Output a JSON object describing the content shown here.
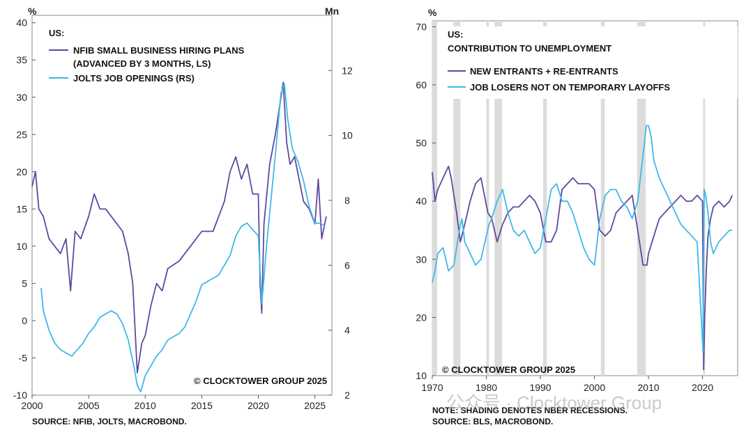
{
  "chart_data": [
    {
      "type": "line",
      "panel_title": "US:",
      "left_unit": "%",
      "right_unit": "Mn",
      "x_ticks": [
        "2000",
        "2005",
        "2010",
        "2015",
        "2020",
        "2025"
      ],
      "xlim": [
        2000,
        2026.5
      ],
      "ylim_left": [
        -10,
        41
      ],
      "ylim_right": [
        2,
        13.7
      ],
      "left_ticks": [
        40,
        35,
        30,
        25,
        20,
        15,
        10,
        5,
        0,
        -5,
        -10
      ],
      "right_ticks": [
        12,
        10,
        8,
        6,
        4,
        2
      ],
      "copyright": "© CLOCKTOWER GROUP 2025",
      "source": "SOURCE: NFIB, JOLTS, MACROBOND.",
      "series": [
        {
          "name": "NFIB SMALL BUSINESS HIRING PLANS",
          "name_line2": "(ADVANCED BY 3 MONTHS, LS)",
          "axis": "left",
          "color": "#5b4a9e",
          "x": [
            2000,
            2000.3,
            2000.6,
            2001,
            2001.5,
            2002,
            2002.5,
            2003,
            2003.4,
            2003.8,
            2004.3,
            2005,
            2005.5,
            2006,
            2006.5,
            2007,
            2007.5,
            2008,
            2008.5,
            2008.9,
            2009.3,
            2009.7,
            2010,
            2010.5,
            2011,
            2011.5,
            2012,
            2013,
            2014,
            2015,
            2016,
            2017,
            2017.5,
            2018,
            2018.5,
            2019,
            2019.5,
            2020,
            2020.15,
            2020.3,
            2020.5,
            2021,
            2021.5,
            2021.9,
            2022.2,
            2022.5,
            2022.8,
            2023.2,
            2023.6,
            2024,
            2024.5,
            2025,
            2025.3,
            2025.6,
            2026
          ],
          "y": [
            18,
            20,
            15,
            14,
            11,
            10,
            9,
            11,
            4,
            12,
            11,
            14,
            17,
            15,
            15,
            14,
            13,
            12,
            9,
            5,
            -7,
            -3,
            -2,
            2,
            5,
            4,
            7,
            8,
            10,
            12,
            12,
            16,
            20,
            22,
            19,
            21,
            17,
            17,
            5,
            1,
            13,
            21,
            25,
            29,
            32,
            24,
            21,
            22,
            19,
            16,
            15,
            13,
            19,
            11,
            14
          ]
        },
        {
          "name": "JOLTS JOB OPENINGS (RS)",
          "axis": "right",
          "color": "#3fb8e8",
          "x": [
            2000.8,
            2001,
            2001.5,
            2002,
            2002.5,
            2003,
            2003.5,
            2004,
            2004.5,
            2005,
            2005.5,
            2006,
            2006.5,
            2007,
            2007.5,
            2008,
            2008.5,
            2009,
            2009.3,
            2009.6,
            2010,
            2010.5,
            2011,
            2011.5,
            2012,
            2012.5,
            2013,
            2013.5,
            2014,
            2014.5,
            2015,
            2015.5,
            2016,
            2016.5,
            2017,
            2017.5,
            2018,
            2018.5,
            2019,
            2019.5,
            2020,
            2020.3,
            2020.45,
            2020.7,
            2021,
            2021.5,
            2022,
            2022.3,
            2022.6,
            2023,
            2023.5,
            2024,
            2024.5,
            2025,
            2025.5,
            2025.9
          ],
          "y": [
            5.3,
            4.6,
            4.0,
            3.6,
            3.4,
            3.3,
            3.2,
            3.4,
            3.6,
            3.9,
            4.1,
            4.4,
            4.5,
            4.6,
            4.5,
            4.2,
            3.7,
            2.9,
            2.3,
            2.1,
            2.6,
            2.9,
            3.2,
            3.4,
            3.7,
            3.8,
            3.9,
            4.1,
            4.5,
            4.9,
            5.4,
            5.5,
            5.6,
            5.7,
            6.0,
            6.3,
            6.9,
            7.2,
            7.3,
            7.1,
            6.9,
            4.8,
            5.4,
            6.5,
            7.6,
            9.4,
            11.3,
            11.6,
            10.5,
            9.6,
            9.2,
            8.6,
            7.8,
            7.3,
            7.3,
            7.2
          ]
        }
      ]
    },
    {
      "type": "line",
      "panel_title": "US:",
      "panel_subtitle": "CONTRIBUTION TO UNEMPLOYMENT",
      "left_unit": "%",
      "x_ticks": [
        "1970",
        "1980",
        "1990",
        "2000",
        "2010",
        "2020"
      ],
      "xlim": [
        1970,
        2026.5
      ],
      "ylim": [
        10,
        71
      ],
      "y_ticks": [
        70,
        60,
        50,
        40,
        30,
        20,
        10
      ],
      "recessions": [
        [
          1969.9,
          1970.9
        ],
        [
          1973.9,
          1975.2
        ],
        [
          1980.0,
          1980.5
        ],
        [
          1981.5,
          1982.9
        ],
        [
          1990.5,
          1991.2
        ],
        [
          2001.2,
          2001.9
        ],
        [
          2007.9,
          2009.5
        ],
        [
          2020.1,
          2020.4
        ]
      ],
      "copyright": "© CLOCKTOWER GROUP 2025",
      "note": "NOTE: SHADING DENOTES NBER RECESSIONS.",
      "source": "SOURCE: BLS, MACROBOND.",
      "watermark": "公众号 · Clocktower Group",
      "series": [
        {
          "name": "NEW ENTRANTS + RE-ENTRANTS",
          "color": "#5b4a9e",
          "x": [
            1970,
            1970.5,
            1971,
            1972,
            1973,
            1973.5,
            1974.5,
            1975.2,
            1976,
            1977,
            1978,
            1979,
            1980.3,
            1981,
            1982,
            1983,
            1984,
            1985,
            1986,
            1987,
            1988,
            1989,
            1990,
            1991,
            1992,
            1993,
            1994,
            1995,
            1996,
            1997,
            1998,
            1999,
            2000,
            2001,
            2002,
            2003,
            2004,
            2005,
            2006,
            2007,
            2008,
            2009,
            2009.7,
            2010,
            2011,
            2012,
            2013,
            2014,
            2015,
            2016,
            2017,
            2018,
            2019,
            2020.0,
            2020.2,
            2020.4,
            2020.7,
            2021,
            2021.5,
            2022,
            2023,
            2024,
            2025,
            2025.5
          ],
          "y": [
            45,
            40,
            42,
            44,
            46,
            44,
            38,
            33,
            36,
            40,
            43,
            44,
            38,
            37,
            33,
            36,
            38,
            39,
            39,
            40,
            41,
            40,
            38,
            33,
            33,
            35,
            42,
            43,
            44,
            43,
            43,
            43,
            42,
            35,
            34,
            35,
            38,
            39,
            40,
            41,
            35,
            29,
            29,
            31,
            34,
            37,
            38,
            39,
            40,
            41,
            40,
            40,
            41,
            40,
            11,
            20,
            28,
            34,
            37,
            39,
            40,
            39,
            40,
            41
          ]
        },
        {
          "name": "JOB LOSERS NOT ON TEMPORARY LAYOFFS",
          "color": "#3fb8e8",
          "x": [
            1970,
            1970.5,
            1971,
            1972,
            1973,
            1974,
            1975,
            1975.5,
            1976,
            1977,
            1978,
            1979,
            1980.5,
            1981,
            1982,
            1983,
            1984,
            1985,
            1986,
            1987,
            1988,
            1989,
            1990,
            1991,
            1992,
            1993,
            1994,
            1995,
            1996,
            1997,
            1998,
            1999,
            2000,
            2001,
            2002,
            2003,
            2004,
            2005,
            2006,
            2007,
            2008,
            2009,
            2009.6,
            2010,
            2010.5,
            2011,
            2012,
            2013,
            2014,
            2015,
            2016,
            2017,
            2018,
            2019,
            2020.1,
            2020.3,
            2020.6,
            2021,
            2021.5,
            2022,
            2023,
            2024,
            2025,
            2025.5
          ],
          "y": [
            26,
            28,
            31,
            32,
            28,
            29,
            35,
            37,
            33,
            31,
            29,
            30,
            36,
            37,
            40,
            42,
            38,
            35,
            34,
            35,
            33,
            31,
            32,
            37,
            42,
            43,
            40,
            40,
            38,
            35,
            32,
            30,
            29,
            37,
            41,
            42,
            42,
            40,
            39,
            37,
            40,
            48,
            53,
            53,
            51,
            47,
            44,
            42,
            40,
            38,
            36,
            35,
            34,
            33,
            14,
            42,
            41,
            38,
            33,
            31,
            33,
            34,
            35,
            35
          ]
        }
      ]
    }
  ]
}
